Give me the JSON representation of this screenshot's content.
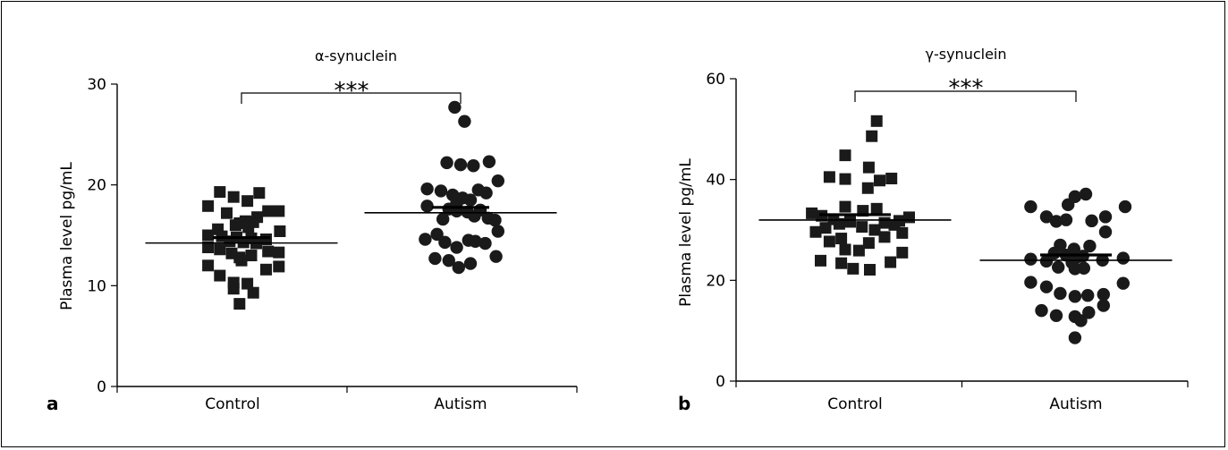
{
  "chart_data": [
    {
      "type": "scatter",
      "panel_label": "a",
      "title": "α-synuclein",
      "ylabel": "Plasma level pg/mL",
      "xlabel": "",
      "ylim": [
        0,
        30
      ],
      "yticks": [
        0,
        10,
        20,
        30
      ],
      "categories": [
        "Control",
        "Autism"
      ],
      "significance": "***",
      "grid": false,
      "series": [
        {
          "name": "Control",
          "marker": "square",
          "mean": 14.5,
          "points": [
            {
              "x": 0,
              "y": 19.3,
              "off": -0.22
            },
            {
              "x": 0,
              "y": 18.8,
              "off": -0.08
            },
            {
              "x": 0,
              "y": 18.4,
              "off": 0.06
            },
            {
              "x": 0,
              "y": 19.2,
              "off": 0.18
            },
            {
              "x": 0,
              "y": 17.9,
              "off": -0.34
            },
            {
              "x": 0,
              "y": 17.2,
              "off": -0.15
            },
            {
              "x": 0,
              "y": 17.4,
              "off": 0.27
            },
            {
              "x": 0,
              "y": 17.4,
              "off": 0.38
            },
            {
              "x": 0,
              "y": 16.8,
              "off": 0.16
            },
            {
              "x": 0,
              "y": 16.4,
              "off": 0.04
            },
            {
              "x": 0,
              "y": 16.2,
              "off": -0.02
            },
            {
              "x": 0,
              "y": 16.3,
              "off": 0.12
            },
            {
              "x": 0,
              "y": 16.0,
              "off": -0.06
            },
            {
              "x": 0,
              "y": 15.8,
              "off": 0.07
            },
            {
              "x": 0,
              "y": 15.6,
              "off": -0.24
            },
            {
              "x": 0,
              "y": 15.4,
              "off": 0.39
            },
            {
              "x": 0,
              "y": 15.0,
              "off": -0.34
            },
            {
              "x": 0,
              "y": 14.9,
              "off": -0.2
            },
            {
              "x": 0,
              "y": 14.8,
              "off": -0.05
            },
            {
              "x": 0,
              "y": 14.7,
              "off": 0.1
            },
            {
              "x": 0,
              "y": 14.6,
              "off": 0.25
            },
            {
              "x": 0,
              "y": 14.4,
              "off": -0.12
            },
            {
              "x": 0,
              "y": 14.3,
              "off": 0.02
            },
            {
              "x": 0,
              "y": 14.2,
              "off": 0.15
            },
            {
              "x": 0,
              "y": 13.8,
              "off": -0.34
            },
            {
              "x": 0,
              "y": 13.6,
              "off": -0.22
            },
            {
              "x": 0,
              "y": 13.4,
              "off": 0.27
            },
            {
              "x": 0,
              "y": 13.3,
              "off": 0.38
            },
            {
              "x": 0,
              "y": 13.2,
              "off": -0.1
            },
            {
              "x": 0,
              "y": 13.0,
              "off": 0.1
            },
            {
              "x": 0,
              "y": 12.8,
              "off": -0.02
            },
            {
              "x": 0,
              "y": 12.5,
              "off": 0.0
            },
            {
              "x": 0,
              "y": 12.0,
              "off": -0.34
            },
            {
              "x": 0,
              "y": 11.9,
              "off": 0.38
            },
            {
              "x": 0,
              "y": 11.6,
              "off": 0.25
            },
            {
              "x": 0,
              "y": 11.0,
              "off": -0.22
            },
            {
              "x": 0,
              "y": 10.3,
              "off": -0.08
            },
            {
              "x": 0,
              "y": 10.2,
              "off": 0.06
            },
            {
              "x": 0,
              "y": 9.7,
              "off": -0.08
            },
            {
              "x": 0,
              "y": 9.3,
              "off": 0.12
            },
            {
              "x": 0,
              "y": 8.2,
              "off": -0.02
            }
          ]
        },
        {
          "name": "Autism",
          "marker": "circle",
          "mean": 17.5,
          "points": [
            {
              "x": 1,
              "y": 27.7,
              "off": -0.06
            },
            {
              "x": 1,
              "y": 26.3,
              "off": 0.04
            },
            {
              "x": 1,
              "y": 22.3,
              "off": 0.29
            },
            {
              "x": 1,
              "y": 22.2,
              "off": -0.14
            },
            {
              "x": 1,
              "y": 22.0,
              "off": 0.0
            },
            {
              "x": 1,
              "y": 21.9,
              "off": 0.13
            },
            {
              "x": 1,
              "y": 20.4,
              "off": 0.38
            },
            {
              "x": 1,
              "y": 19.6,
              "off": -0.34
            },
            {
              "x": 1,
              "y": 19.4,
              "off": -0.2
            },
            {
              "x": 1,
              "y": 19.5,
              "off": 0.18
            },
            {
              "x": 1,
              "y": 19.2,
              "off": 0.26
            },
            {
              "x": 1,
              "y": 19.0,
              "off": -0.08
            },
            {
              "x": 1,
              "y": 18.7,
              "off": 0.02
            },
            {
              "x": 1,
              "y": 18.5,
              "off": 0.1
            },
            {
              "x": 1,
              "y": 18.2,
              "off": -0.04
            },
            {
              "x": 1,
              "y": 17.9,
              "off": -0.34
            },
            {
              "x": 1,
              "y": 17.6,
              "off": -0.12
            },
            {
              "x": 1,
              "y": 17.5,
              "off": 0.2
            },
            {
              "x": 1,
              "y": 17.4,
              "off": -0.04
            },
            {
              "x": 1,
              "y": 17.3,
              "off": 0.07
            },
            {
              "x": 1,
              "y": 16.9,
              "off": 0.14
            },
            {
              "x": 1,
              "y": 16.7,
              "off": 0.28
            },
            {
              "x": 1,
              "y": 16.6,
              "off": -0.18
            },
            {
              "x": 1,
              "y": 16.5,
              "off": 0.35
            },
            {
              "x": 1,
              "y": 15.4,
              "off": 0.38
            },
            {
              "x": 1,
              "y": 15.1,
              "off": -0.24
            },
            {
              "x": 1,
              "y": 14.6,
              "off": -0.36
            },
            {
              "x": 1,
              "y": 14.5,
              "off": 0.08
            },
            {
              "x": 1,
              "y": 14.4,
              "off": 0.15
            },
            {
              "x": 1,
              "y": 14.3,
              "off": -0.16
            },
            {
              "x": 1,
              "y": 14.2,
              "off": 0.25
            },
            {
              "x": 1,
              "y": 13.8,
              "off": -0.04
            },
            {
              "x": 1,
              "y": 12.9,
              "off": 0.36
            },
            {
              "x": 1,
              "y": 12.7,
              "off": -0.26
            },
            {
              "x": 1,
              "y": 12.5,
              "off": -0.12
            },
            {
              "x": 1,
              "y": 12.2,
              "off": 0.1
            },
            {
              "x": 1,
              "y": 11.8,
              "off": -0.02
            }
          ]
        }
      ]
    },
    {
      "type": "scatter",
      "panel_label": "b",
      "title": "γ-synuclein",
      "ylabel": "Plasma level pg/mL",
      "xlabel": "",
      "ylim": [
        0,
        60
      ],
      "yticks": [
        0,
        20,
        40,
        60
      ],
      "categories": [
        "Control",
        "Autism"
      ],
      "significance": "***",
      "grid": false,
      "series": [
        {
          "name": "Control",
          "marker": "square",
          "mean": 32.5,
          "points": [
            {
              "x": 0,
              "y": 51.6,
              "off": 0.22
            },
            {
              "x": 0,
              "y": 48.6,
              "off": 0.17
            },
            {
              "x": 0,
              "y": 44.8,
              "off": -0.1
            },
            {
              "x": 0,
              "y": 42.4,
              "off": 0.14
            },
            {
              "x": 0,
              "y": 40.5,
              "off": -0.26
            },
            {
              "x": 0,
              "y": 40.1,
              "off": -0.1
            },
            {
              "x": 0,
              "y": 39.8,
              "off": 0.25
            },
            {
              "x": 0,
              "y": 40.2,
              "off": 0.37
            },
            {
              "x": 0,
              "y": 38.3,
              "off": 0.13
            },
            {
              "x": 0,
              "y": 34.6,
              "off": -0.1
            },
            {
              "x": 0,
              "y": 34.2,
              "off": 0.22
            },
            {
              "x": 0,
              "y": 33.8,
              "off": 0.08
            },
            {
              "x": 0,
              "y": 33.3,
              "off": -0.44
            },
            {
              "x": 0,
              "y": 32.8,
              "off": -0.34
            },
            {
              "x": 0,
              "y": 32.5,
              "off": 0.55
            },
            {
              "x": 0,
              "y": 32.1,
              "off": -0.22
            },
            {
              "x": 0,
              "y": 31.8,
              "off": 0.45
            },
            {
              "x": 0,
              "y": 31.6,
              "off": -0.05
            },
            {
              "x": 0,
              "y": 31.4,
              "off": 0.3
            },
            {
              "x": 0,
              "y": 31.2,
              "off": -0.16
            },
            {
              "x": 0,
              "y": 31.0,
              "off": 0.4
            },
            {
              "x": 0,
              "y": 30.6,
              "off": 0.07
            },
            {
              "x": 0,
              "y": 30.4,
              "off": -0.3
            },
            {
              "x": 0,
              "y": 30.0,
              "off": 0.2
            },
            {
              "x": 0,
              "y": 29.6,
              "off": -0.4
            },
            {
              "x": 0,
              "y": 29.4,
              "off": 0.48
            },
            {
              "x": 0,
              "y": 28.6,
              "off": 0.3
            },
            {
              "x": 0,
              "y": 28.3,
              "off": -0.14
            },
            {
              "x": 0,
              "y": 27.7,
              "off": -0.26
            },
            {
              "x": 0,
              "y": 27.4,
              "off": 0.14
            },
            {
              "x": 0,
              "y": 26.1,
              "off": -0.1
            },
            {
              "x": 0,
              "y": 25.9,
              "off": 0.04
            },
            {
              "x": 0,
              "y": 25.5,
              "off": 0.48
            },
            {
              "x": 0,
              "y": 23.9,
              "off": -0.35
            },
            {
              "x": 0,
              "y": 23.6,
              "off": 0.36
            },
            {
              "x": 0,
              "y": 23.4,
              "off": -0.14
            },
            {
              "x": 0,
              "y": 22.3,
              "off": -0.02
            },
            {
              "x": 0,
              "y": 22.1,
              "off": 0.15
            }
          ]
        },
        {
          "name": "Autism",
          "marker": "circle",
          "mean": 24.5,
          "points": [
            {
              "x": 1,
              "y": 37.1,
              "off": 0.1
            },
            {
              "x": 1,
              "y": 36.6,
              "off": -0.01
            },
            {
              "x": 1,
              "y": 35.0,
              "off": -0.08
            },
            {
              "x": 1,
              "y": 34.6,
              "off": -0.46
            },
            {
              "x": 1,
              "y": 34.6,
              "off": 0.5
            },
            {
              "x": 1,
              "y": 32.6,
              "off": -0.3
            },
            {
              "x": 1,
              "y": 32.6,
              "off": 0.3
            },
            {
              "x": 1,
              "y": 32.0,
              "off": -0.1
            },
            {
              "x": 1,
              "y": 31.8,
              "off": 0.16
            },
            {
              "x": 1,
              "y": 31.7,
              "off": -0.2
            },
            {
              "x": 1,
              "y": 29.6,
              "off": 0.3
            },
            {
              "x": 1,
              "y": 27.0,
              "off": -0.16
            },
            {
              "x": 1,
              "y": 26.8,
              "off": 0.14
            },
            {
              "x": 1,
              "y": 26.2,
              "off": -0.02
            },
            {
              "x": 1,
              "y": 25.4,
              "off": -0.22
            },
            {
              "x": 1,
              "y": 25.0,
              "off": -0.1
            },
            {
              "x": 1,
              "y": 24.8,
              "off": 0.07
            },
            {
              "x": 1,
              "y": 24.6,
              "off": 0.01
            },
            {
              "x": 1,
              "y": 24.4,
              "off": 0.48
            },
            {
              "x": 1,
              "y": 24.2,
              "off": -0.46
            },
            {
              "x": 1,
              "y": 24.0,
              "off": 0.27
            },
            {
              "x": 1,
              "y": 23.8,
              "off": -0.3
            },
            {
              "x": 1,
              "y": 23.5,
              "off": -0.04
            },
            {
              "x": 1,
              "y": 22.6,
              "off": -0.18
            },
            {
              "x": 1,
              "y": 22.4,
              "off": 0.08
            },
            {
              "x": 1,
              "y": 22.3,
              "off": -0.01
            },
            {
              "x": 1,
              "y": 19.6,
              "off": -0.46
            },
            {
              "x": 1,
              "y": 19.4,
              "off": 0.48
            },
            {
              "x": 1,
              "y": 18.7,
              "off": -0.3
            },
            {
              "x": 1,
              "y": 17.4,
              "off": -0.16
            },
            {
              "x": 1,
              "y": 17.2,
              "off": 0.28
            },
            {
              "x": 1,
              "y": 17.0,
              "off": 0.12
            },
            {
              "x": 1,
              "y": 16.8,
              "off": -0.01
            },
            {
              "x": 1,
              "y": 15.0,
              "off": 0.28
            },
            {
              "x": 1,
              "y": 14.0,
              "off": -0.35
            },
            {
              "x": 1,
              "y": 13.6,
              "off": 0.13
            },
            {
              "x": 1,
              "y": 13.0,
              "off": -0.2
            },
            {
              "x": 1,
              "y": 12.8,
              "off": -0.01
            },
            {
              "x": 1,
              "y": 12.0,
              "off": 0.05
            },
            {
              "x": 1,
              "y": 8.6,
              "off": -0.01
            }
          ]
        }
      ]
    }
  ]
}
